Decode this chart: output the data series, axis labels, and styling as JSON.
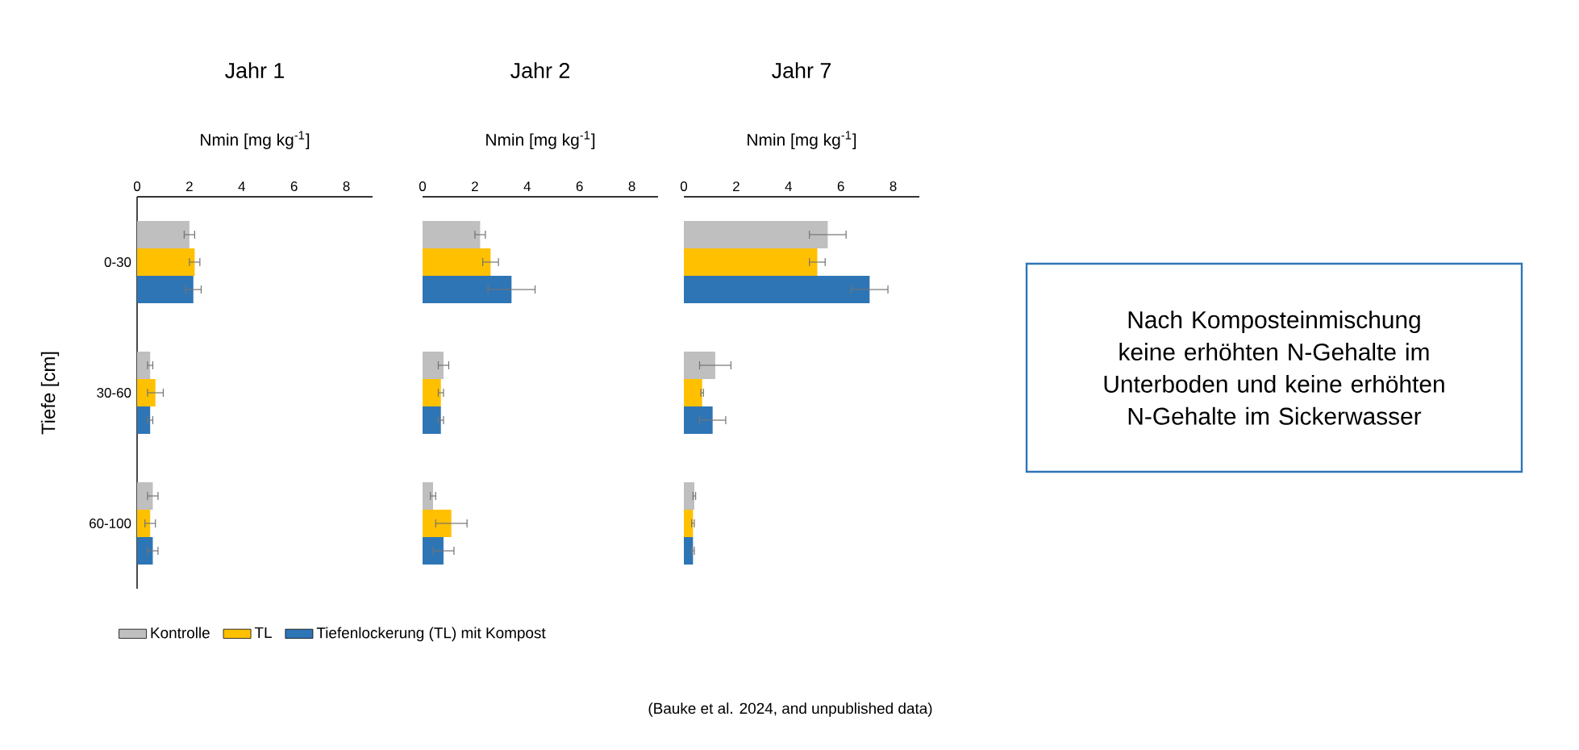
{
  "chart_data": [
    {
      "type": "bar",
      "orientation": "horizontal",
      "title": "Jahr 1",
      "xlabel": "Nmin [mg kg$^{-1}$]",
      "ylabel": "Tiefe [cm]",
      "categories": [
        "0-30",
        "30-60",
        "60-100"
      ],
      "xlim": [
        0,
        9
      ],
      "xticks": [
        0,
        2,
        4,
        6,
        8
      ],
      "legend": "bottom",
      "series": [
        {
          "name": "Kontrolle",
          "color": "#bfbfbf",
          "values": [
            2.0,
            0.5,
            0.6
          ],
          "errors": [
            0.2,
            0.1,
            0.2
          ]
        },
        {
          "name": "TL",
          "color": "#ffc000",
          "values": [
            2.2,
            0.7,
            0.5
          ],
          "errors": [
            0.2,
            0.3,
            0.2
          ]
        },
        {
          "name": "Tiefenlockerung (TL) mit Kompost",
          "color": "#2e75b6",
          "values": [
            2.15,
            0.5,
            0.6
          ],
          "errors": [
            0.3,
            0.1,
            0.2
          ]
        }
      ],
      "annotations": [
        "Nach Komposteinmischung keine erhöhten N-Gehalte im Unterboden und keine erhöhten N-Gehalte im Sickerwasser",
        "(Bauke et al. 2024, and unpublished data)"
      ]
    },
    {
      "type": "bar",
      "orientation": "horizontal",
      "title": "Jahr 2",
      "xlabel": "Nmin [mg kg$^{-1}$]",
      "categories": [
        null,
        null,
        null
      ],
      "xlim": [
        0,
        9
      ],
      "xticks": [
        0,
        2,
        4,
        6,
        8
      ],
      "tick_labels": "x",
      "series": [
        {
          "color": "#bfbfbf",
          "values": [
            2.2,
            0.8,
            0.4
          ],
          "errors": [
            0.2,
            0.2,
            0.1
          ]
        },
        {
          "color": "#ffc000",
          "values": [
            2.6,
            0.7,
            1.1
          ],
          "errors": [
            0.3,
            0.1,
            0.6
          ]
        },
        {
          "color": "#2e75b6",
          "values": [
            3.4,
            0.7,
            0.8
          ],
          "errors": [
            0.9,
            0.1,
            0.4
          ]
        }
      ]
    },
    {
      "type": "bar",
      "orientation": "horizontal",
      "title": "Jahr 7",
      "xlabel": "Nmin [mg kg$^{-1}$]",
      "categories": [
        null,
        null,
        null
      ],
      "xlim": [
        0,
        9
      ],
      "xticks": [
        0,
        2,
        4,
        6,
        8
      ],
      "tick_labels": "x",
      "series": [
        {
          "color": "#bfbfbf",
          "values": [
            5.5,
            1.2,
            0.4
          ],
          "errors": [
            0.7,
            0.6,
            0.05
          ]
        },
        {
          "color": "#ffc000",
          "values": [
            5.1,
            0.7,
            0.35
          ],
          "errors": [
            0.3,
            0.05,
            0.05
          ]
        },
        {
          "color": "#2e75b6",
          "values": [
            7.1,
            1.1,
            0.35
          ],
          "errors": [
            0.7,
            0.5,
            0.05
          ]
        }
      ]
    }
  ]
}
